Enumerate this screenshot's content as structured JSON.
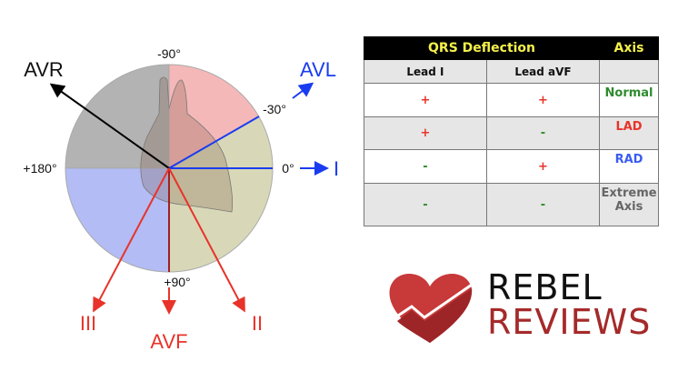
{
  "diagram": {
    "angles": {
      "top": "-90°",
      "upper_right": "-30°",
      "right": "0°",
      "left": "+180°",
      "bottom": "+90°"
    },
    "leads": {
      "avr": "AVR",
      "avl": "AVL",
      "i": "I",
      "ii": "II",
      "iii": "III",
      "avf": "AVF"
    },
    "colors": {
      "normal_quadrant": "#d8d8b8",
      "lad_sector": "#f4b8b8",
      "rad_quadrant": "#b3bcf4",
      "extreme_quadrant": "#b3b3b3",
      "lead_blue": "#1a3cf0",
      "lead_red": "#e8332a"
    }
  },
  "table": {
    "header": {
      "deflection": "QRS Deflection",
      "axis": "Axis"
    },
    "columns": [
      "Lead I",
      "Lead aVF",
      ""
    ],
    "rows": [
      {
        "lead_i": "+",
        "lead_avf": "+",
        "axis": "Normal",
        "color": "#2e8b2e"
      },
      {
        "lead_i": "+",
        "lead_avf": "-",
        "axis": "LAD",
        "color": "#e8332a"
      },
      {
        "lead_i": "-",
        "lead_avf": "+",
        "axis": "RAD",
        "color": "#3a5cf0"
      },
      {
        "lead_i": "-",
        "lead_avf": "-",
        "axis": "Extreme Axis",
        "color": "#666666"
      }
    ]
  },
  "logo": {
    "line1": "REBEL",
    "line2": "REVIEWS"
  }
}
